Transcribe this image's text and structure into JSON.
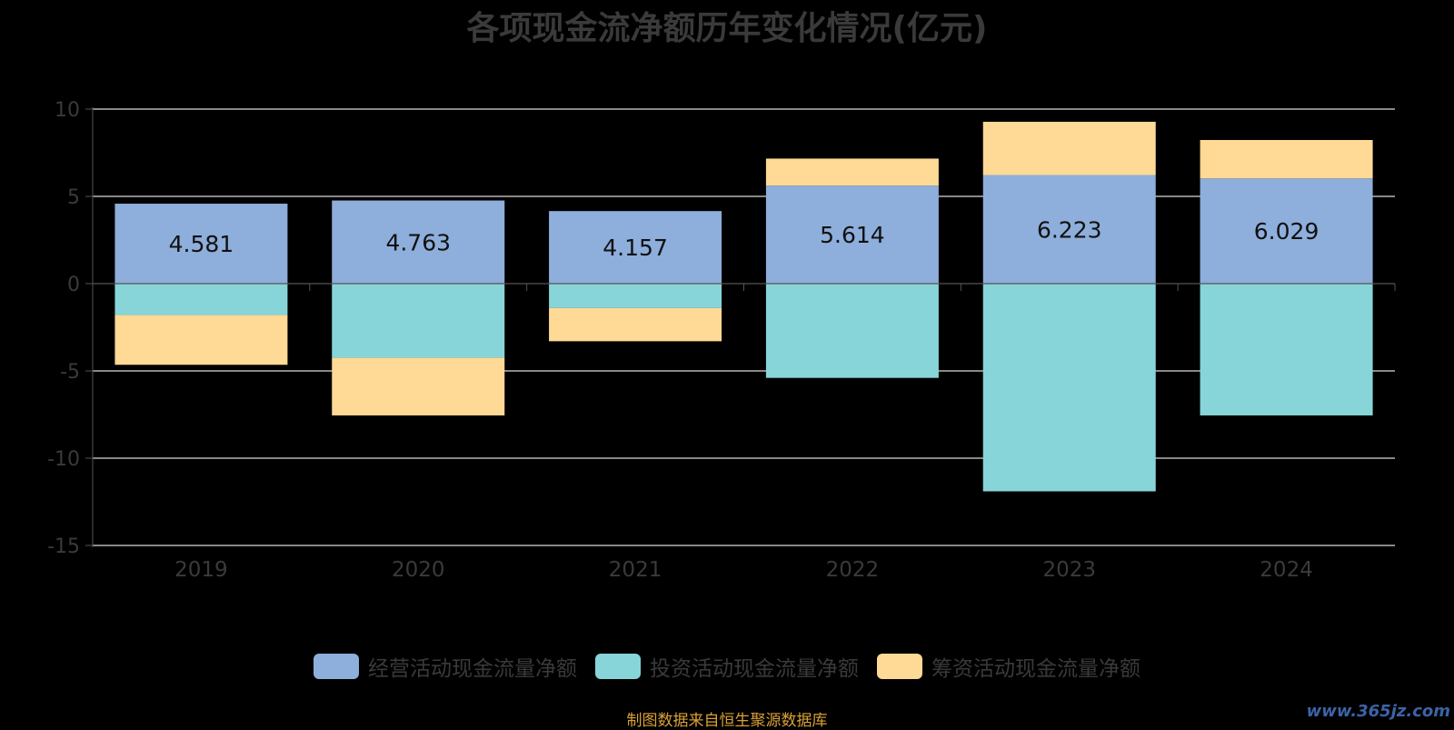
{
  "chart_data": {
    "type": "bar",
    "stacked": true,
    "title": "各项现金流净额历年变化情况(亿元)",
    "categories": [
      "2019",
      "2020",
      "2021",
      "2022",
      "2023",
      "2024"
    ],
    "ylim": [
      -15,
      10
    ],
    "yticks": [
      10,
      5,
      0,
      -5,
      -10,
      -15
    ],
    "grid": true,
    "legend_position": "bottom",
    "series": [
      {
        "name": "经营活动现金流量净额",
        "color": "#8eaedb",
        "values": [
          4.581,
          4.763,
          4.157,
          5.614,
          6.223,
          6.029
        ],
        "show_labels": true
      },
      {
        "name": "投资活动现金流量净额",
        "color": "#88d5d9",
        "values": [
          -1.8,
          -4.25,
          -1.4,
          -5.4,
          -11.9,
          -7.55
        ],
        "show_labels": false
      },
      {
        "name": "筹资活动现金流量净额",
        "color": "#ffd996",
        "values": [
          -2.85,
          -3.3,
          -1.9,
          1.55,
          3.05,
          2.2
        ],
        "show_labels": false
      }
    ]
  },
  "source": "制图数据来自恒生聚源数据库",
  "watermark": "www.365jz.com"
}
